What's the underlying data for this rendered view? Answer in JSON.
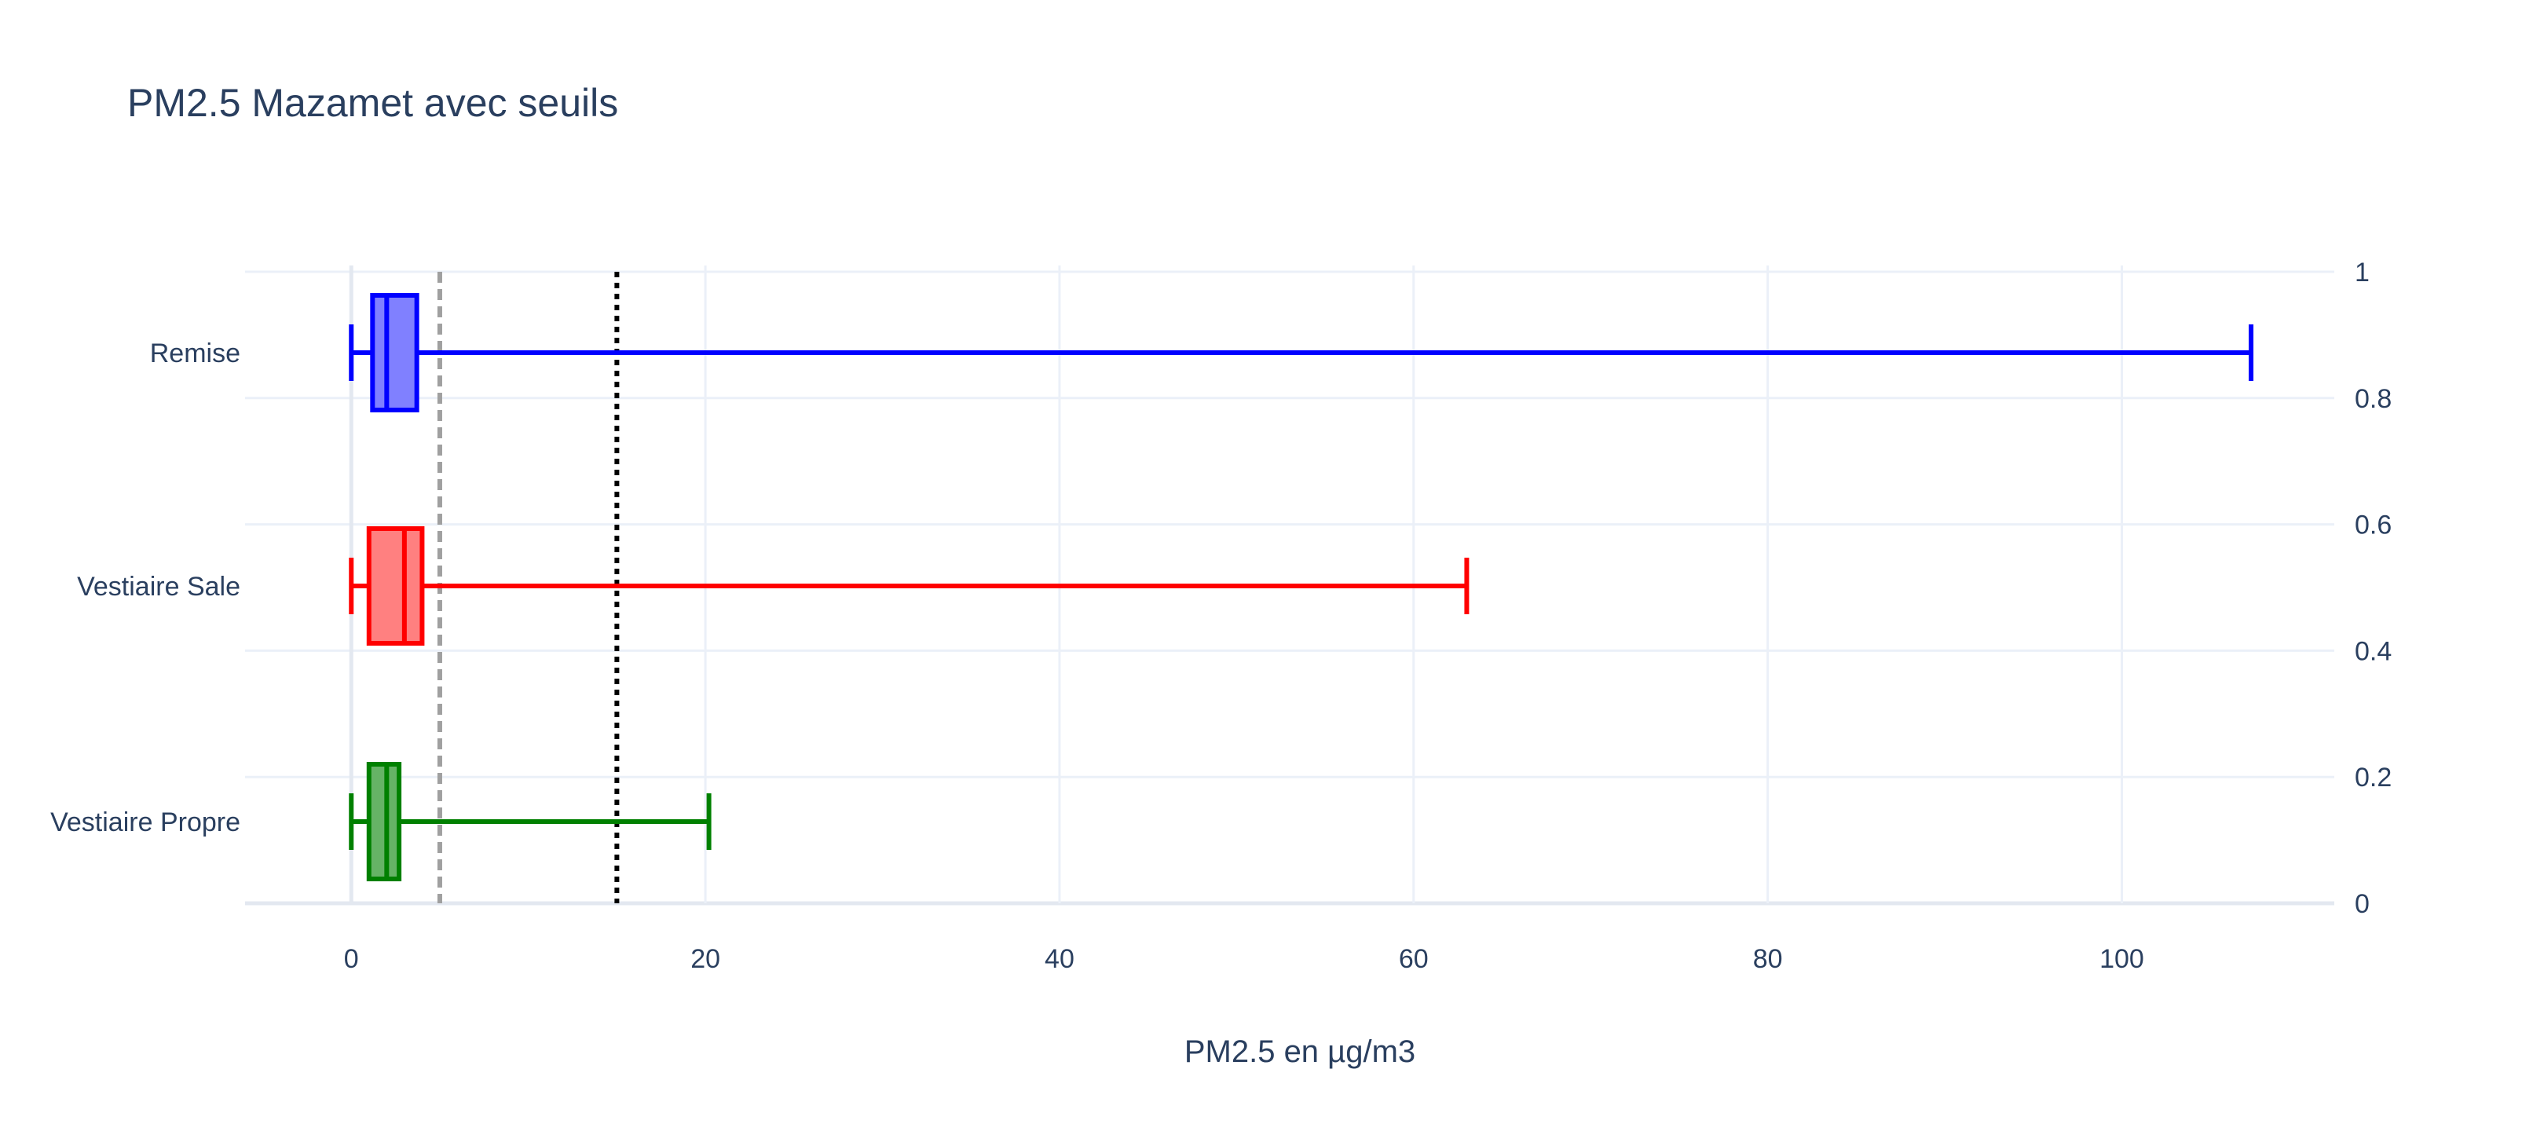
{
  "chart_data": {
    "type": "box",
    "orientation": "horizontal",
    "title": "PM2.5 Mazamet avec seuils",
    "xlabel": "PM2.5 en µg/m3",
    "ylabel": "",
    "xlim": [
      -6,
      112
    ],
    "x_ticks": [
      "0",
      "20",
      "40",
      "60",
      "80",
      "100"
    ],
    "x_tick_values": [
      0,
      20,
      40,
      60,
      80,
      100
    ],
    "y2_ticks": [
      "0",
      "0.2",
      "0.4",
      "0.6",
      "0.8",
      "1"
    ],
    "y2_tick_values": [
      0,
      0.2,
      0.4,
      0.6,
      0.8,
      1
    ],
    "grid": true,
    "categories": [
      "Vestiaire Propre",
      "Vestiaire Sale",
      "Remise"
    ],
    "series": [
      {
        "category": "Vestiaire Propre",
        "color": "#008000",
        "fill": "#66b366",
        "min": 0,
        "q1": 1.0,
        "median": 2.0,
        "q3": 2.7,
        "max": 20.2
      },
      {
        "category": "Vestiaire Sale",
        "color": "#ff0000",
        "fill": "#ff8080",
        "min": 0,
        "q1": 1.0,
        "median": 3.0,
        "q3": 4.0,
        "max": 63.0
      },
      {
        "category": "Remise",
        "color": "#0000ff",
        "fill": "#8080ff",
        "min": 0,
        "q1": 1.2,
        "median": 2.0,
        "q3": 3.7,
        "max": 107.3
      }
    ],
    "thresholds": [
      {
        "x": 5,
        "color": "#a0a0a0",
        "style": "dashed"
      },
      {
        "x": 15,
        "color": "#000000",
        "style": "dotted"
      }
    ]
  }
}
